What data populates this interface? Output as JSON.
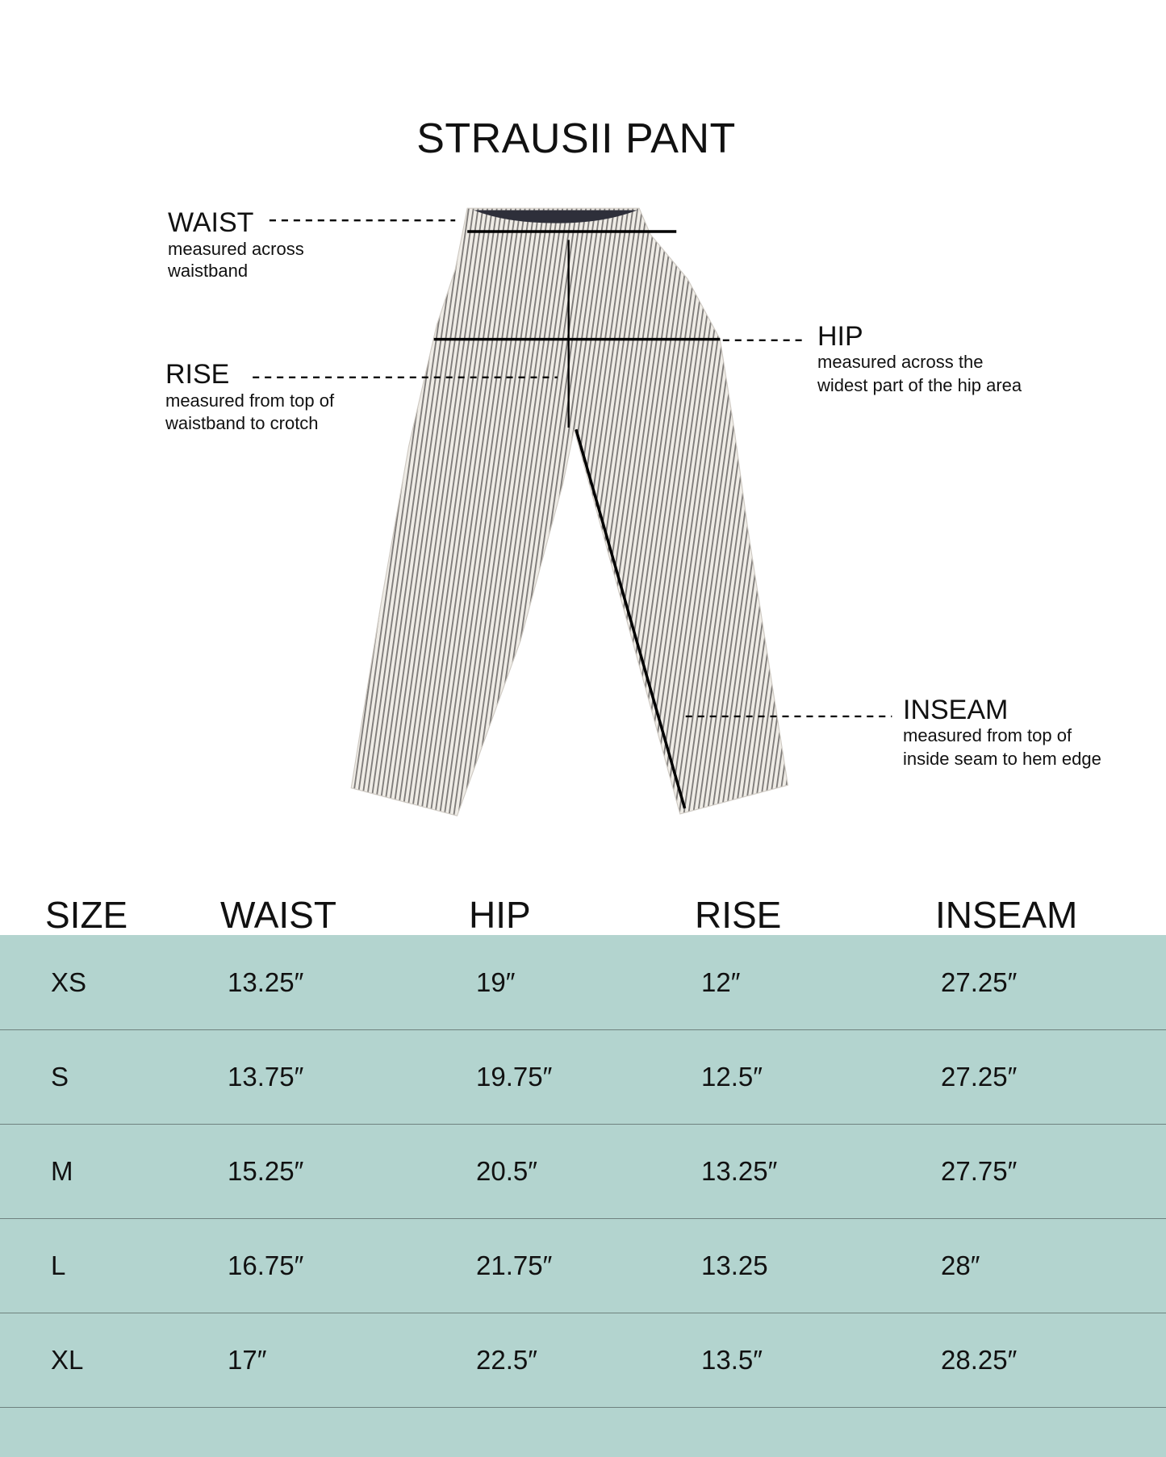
{
  "title": "STRAUSII PANT",
  "diagram": {
    "waist": {
      "label": "WAIST",
      "desc": [
        "measured across",
        "waistband"
      ]
    },
    "rise": {
      "label": "RISE",
      "desc": [
        "measured from top of",
        "waistband to crotch"
      ]
    },
    "hip": {
      "label": "HIP",
      "desc": [
        "measured across the",
        "widest part of the hip area"
      ]
    },
    "inseam": {
      "label": "INSEAM",
      "desc": [
        "measured from top of",
        "inside seam to hem edge"
      ]
    }
  },
  "table": {
    "headers": [
      "SIZE",
      "WAIST",
      "HIP",
      "RISE",
      "INSEAM"
    ],
    "rows": [
      [
        "XS",
        "13.25″",
        "19″",
        "12″",
        "27.25″"
      ],
      [
        "S",
        "13.75″",
        "19.75″",
        "12.5″",
        "27.25″"
      ],
      [
        "M",
        "15.25″",
        "20.5″",
        "13.25″",
        "27.75″"
      ],
      [
        "L",
        "16.75″",
        "21.75″",
        "13.25",
        "28″"
      ],
      [
        "XL",
        "17″",
        "22.5″",
        "13.5″",
        "28.25″"
      ]
    ]
  },
  "colors": {
    "table_bg": "#b3d4cf",
    "divider": "#6f827f",
    "text": "#111111"
  }
}
